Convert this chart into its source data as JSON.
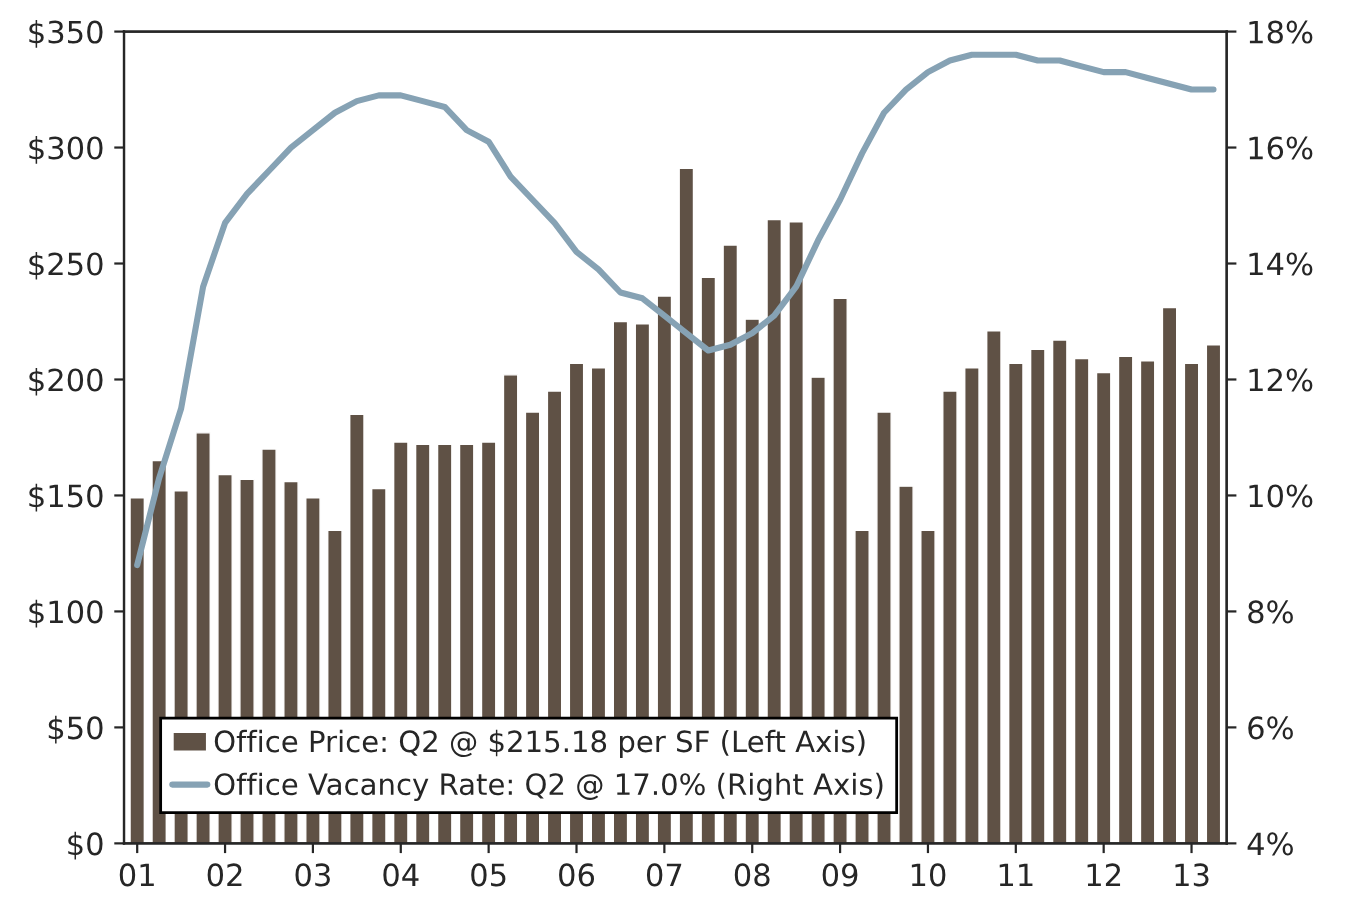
{
  "chart_data": {
    "type": "bar",
    "categories": [
      "01",
      null,
      null,
      null,
      "02",
      null,
      null,
      null,
      "03",
      null,
      null,
      null,
      "04",
      null,
      null,
      null,
      "05",
      null,
      null,
      null,
      "06",
      null,
      null,
      null,
      "07",
      null,
      null,
      null,
      "08",
      null,
      null,
      null,
      "09",
      null,
      null,
      null,
      "10",
      null,
      null,
      null,
      "11",
      null,
      null,
      null,
      "12",
      null,
      null,
      null,
      "13",
      null
    ],
    "series": [
      {
        "name": "Office Price: Q2 @ $215.18 per SF (Left Axis)",
        "color": "#5f5145",
        "values": [
          149,
          165,
          152,
          177,
          159,
          157,
          170,
          156,
          149,
          135,
          185,
          153,
          173,
          172,
          172,
          172,
          173,
          202,
          186,
          195,
          207,
          205,
          225,
          224,
          236,
          291,
          244,
          258,
          226,
          269,
          268,
          201,
          235,
          135,
          186,
          154,
          135,
          195,
          205,
          221,
          207,
          213,
          217,
          209,
          203,
          210,
          208,
          231,
          207,
          215
        ]
      },
      {
        "name": "Office Vacancy Rate: Q2 @ 17.0% (Right Axis)",
        "type": "line",
        "axis": "y2",
        "color": "#86a2b4",
        "values": [
          8.8,
          10.3,
          11.5,
          13.6,
          14.7,
          15.2,
          15.6,
          16.0,
          16.3,
          16.6,
          16.8,
          16.9,
          16.9,
          16.8,
          16.7,
          16.3,
          16.1,
          15.5,
          15.1,
          14.7,
          14.2,
          13.9,
          13.5,
          13.4,
          13.1,
          12.8,
          12.5,
          12.6,
          12.8,
          13.1,
          13.6,
          14.4,
          15.1,
          15.9,
          16.6,
          17.0,
          17.3,
          17.5,
          17.6,
          17.6,
          17.6,
          17.5,
          17.5,
          17.4,
          17.3,
          17.3,
          17.2,
          17.1,
          17.0,
          17.0
        ]
      }
    ],
    "ylim": [
      0,
      350
    ],
    "yticks": [
      {
        "value": 0,
        "label": "$0"
      },
      {
        "value": 50,
        "label": "$50"
      },
      {
        "value": 100,
        "label": "$100"
      },
      {
        "value": 150,
        "label": "$150"
      },
      {
        "value": 200,
        "label": "$200"
      },
      {
        "value": 250,
        "label": "$250"
      },
      {
        "value": 300,
        "label": "$300"
      },
      {
        "value": 350,
        "label": "$350"
      }
    ],
    "y2lim": [
      4,
      18
    ],
    "y2ticks": [
      {
        "value": 4,
        "label": "4%"
      },
      {
        "value": 6,
        "label": "6%"
      },
      {
        "value": 8,
        "label": "8%"
      },
      {
        "value": 10,
        "label": "10%"
      },
      {
        "value": 12,
        "label": "12%"
      },
      {
        "value": 14,
        "label": "14%"
      },
      {
        "value": 16,
        "label": "16%"
      },
      {
        "value": 18,
        "label": "18%"
      }
    ],
    "legend": "bottom left",
    "grid": false
  }
}
